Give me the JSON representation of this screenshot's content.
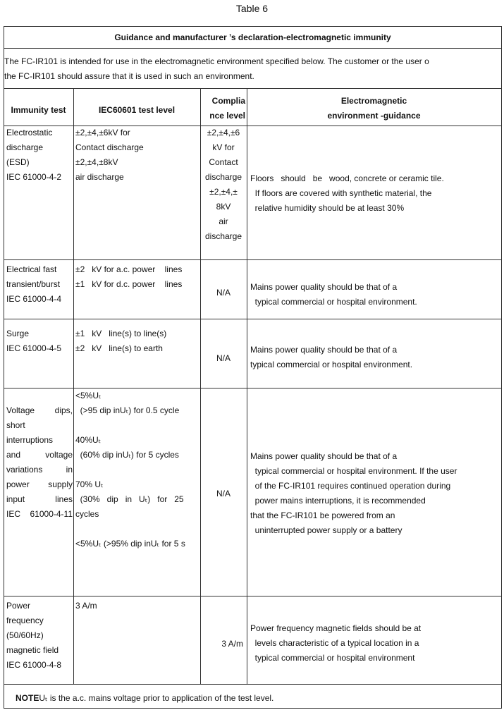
{
  "caption": "Table 6",
  "title": "Guidance and manufacturer ’s declaration-electromagnetic immunity",
  "intro": [
    "The FC-IR101 is intended for use in the electromagnetic environment specified below. The customer or the user o",
    "the FC-IR101 should assure that it is used in such an environment."
  ],
  "headers": {
    "test": "Immunity test",
    "level": "IEC60601 test level",
    "compliance": [
      "Complia",
      "nce level"
    ],
    "guidance": [
      "Electromagnetic",
      "environment -guidance"
    ]
  },
  "rows": [
    {
      "test": [
        "Electrostatic",
        "discharge",
        "(ESD)",
        "IEC 61000-4-2"
      ],
      "level": [
        "±2,±4,±6kV for",
        "Contact discharge",
        "±2,±4,±8kV",
        "air discharge"
      ],
      "compliance": [
        "±2,±4,±6",
        "kV for",
        "Contact",
        "discharge",
        "±2,±4,±",
        "8kV",
        "air",
        "discharge"
      ],
      "guidance": [
        "Floors   should   be   wood, concrete or ceramic tile.",
        "  If floors are covered with synthetic material, the",
        "  relative humidity should be at least 30%"
      ]
    },
    {
      "test": [
        "Electrical fast",
        "transient/burst",
        "IEC 61000-4-4"
      ],
      "level": [
        "±2   kV for a.c. power    lines",
        "±1   kV for d.c. power    lines"
      ],
      "compliance": [
        "N/A"
      ],
      "guidance": [
        "Mains power quality should be that of a",
        "  typical commercial or hospital environment."
      ]
    },
    {
      "test": [
        "Surge",
        "IEC 61000-4-5"
      ],
      "level": [
        "±1   kV   line(s) to line(s)",
        "±2   kV   line(s) to earth"
      ],
      "compliance": [
        "N/A"
      ],
      "guidance": [
        "Mains power quality should be that of a",
        "typical commercial or hospital environment."
      ]
    },
    {
      "test": [
        "Voltage     dips,",
        "short",
        "interruptions",
        "and      voltage",
        "variations       in",
        "power     supply",
        "input lines",
        "IEC 61000-4-11"
      ],
      "level": [
        "<5%Uₜ",
        "  (>95 dip inUₜ) for 0.5 cycle",
        "",
        "40%Uₜ",
        "  (60% dip inUₜ) for 5 cycles",
        "",
        "70% Uₜ",
        "  (30%   dip   in   Uₜ)   for   25",
        "cycles",
        "",
        "<5%Uₜ (>95% dip inUₜ for 5 s"
      ],
      "compliance": [
        "N/A"
      ],
      "guidance": [
        "Mains power quality should be that of a",
        "  typical commercial or hospital environment. If the user",
        "  of the FC-IR101 requires continued operation during",
        "  power mains interruptions, it is recommended",
        "that the FC-IR101 be powered from an",
        "  uninterrupted power supply or a battery"
      ]
    },
    {
      "test": [
        "Power",
        "frequency",
        "(50/60Hz)",
        "magnetic field",
        "IEC 61000-4-8"
      ],
      "level": [
        "3 A/m"
      ],
      "compliance": [
        "3 A/m"
      ],
      "guidance": [
        "Power frequency magnetic fields should be at",
        "  levels characteristic of a typical location in a",
        "  typical commercial or hospital environment"
      ]
    }
  ],
  "note": {
    "label": "NOTE",
    "text": "Uₜ is the a.c. mains voltage prior to application of the test level."
  }
}
